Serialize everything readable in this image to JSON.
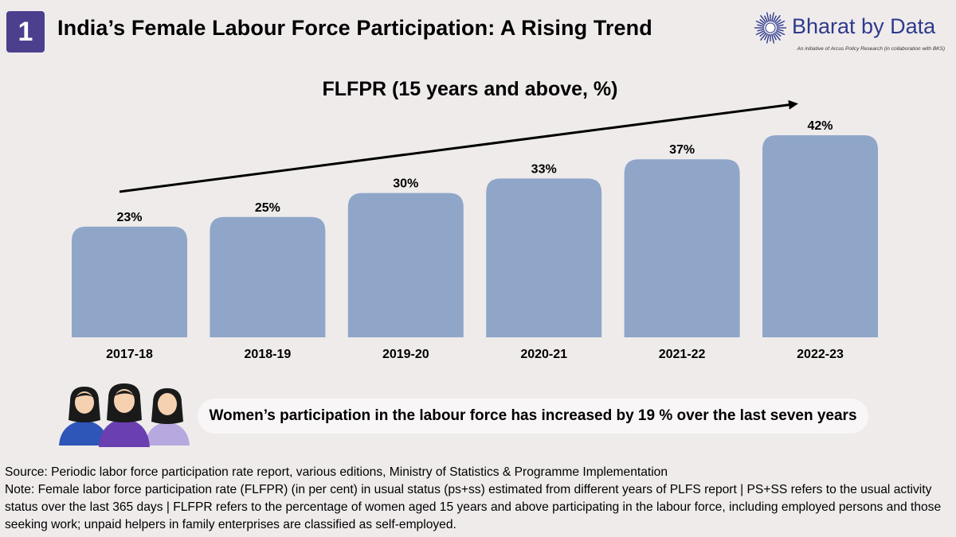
{
  "header": {
    "badge_number": "1",
    "title": "India’s Female Labour Force Participation: A Rising Trend"
  },
  "logo": {
    "name": "Bharat by Data",
    "tagline": "An initiative of Arcus Policy Research (in collaboration with BKS)",
    "icon": "sunburst-icon"
  },
  "chart_data": {
    "type": "bar",
    "title": "FLFPR (15 years and above, %)",
    "categories": [
      "2017-18",
      "2018-19",
      "2019-20",
      "2020-21",
      "2021-22",
      "2022-23"
    ],
    "values": [
      23,
      25,
      30,
      33,
      37,
      42
    ],
    "data_labels": [
      "23%",
      "25%",
      "30%",
      "33%",
      "37%",
      "42%"
    ],
    "ylim": [
      0,
      42
    ],
    "grid": false,
    "legend": "none",
    "trend_arrow": true,
    "bar_color": "#8fa6c9"
  },
  "callout": {
    "text": "Women’s participation in the labour force has increased by 19 % over the last seven years",
    "icon": "three-women-icon"
  },
  "footer": {
    "source": "Source: Periodic labor force participation rate report, various editions, Ministry of Statistics & Programme Implementation",
    "note": "Note:  Female labor force participation rate (FLFPR) (in per cent) in usual status (ps+ss) estimated from different years of PLFS  report | PS+SS refers to the usual activity status over the last 365 days | FLFPR refers to the percentage of women aged 15 years and above participating in the labour force, including employed persons and those seeking work; unpaid helpers in family enterprises are classified as self-employed."
  },
  "colors": {
    "background": "#efebeb",
    "badge": "#4b3f8e",
    "brand": "#2e3a8c",
    "bar": "#8fa6c9"
  }
}
